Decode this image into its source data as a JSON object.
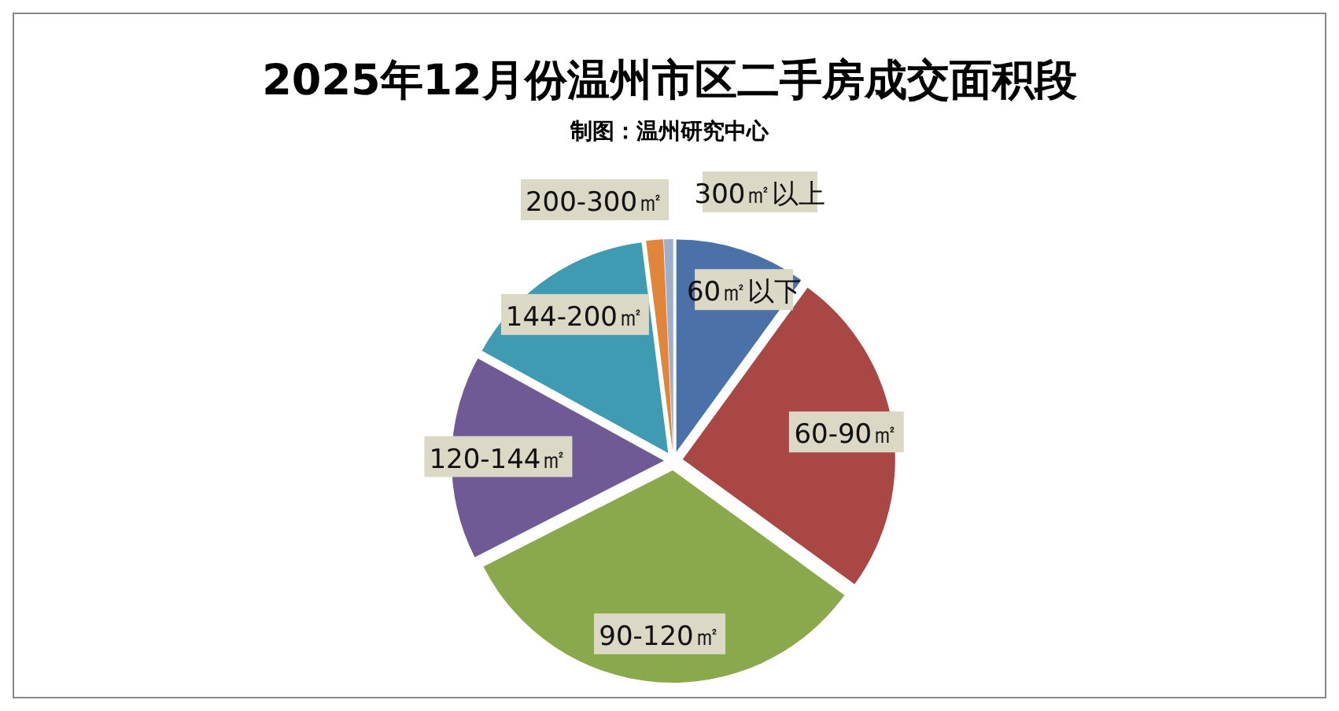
{
  "chart_data": {
    "type": "pie",
    "title": "2025年12月份温州市区二手房成交面积段",
    "subtitle": "制图：温州研究中心",
    "categories": [
      "60㎡以下",
      "60-90㎡",
      "90-120㎡",
      "120-144㎡",
      "144-200㎡",
      "200-300㎡",
      "300㎡以上"
    ],
    "values": [
      10,
      25,
      32.5,
      15.5,
      15,
      1.3,
      0.7
    ],
    "colors": [
      "#4a72a8",
      "#a84744",
      "#8aa84c",
      "#6f5a96",
      "#3e9bb2",
      "#e0853a",
      "#9bb0cd"
    ]
  }
}
